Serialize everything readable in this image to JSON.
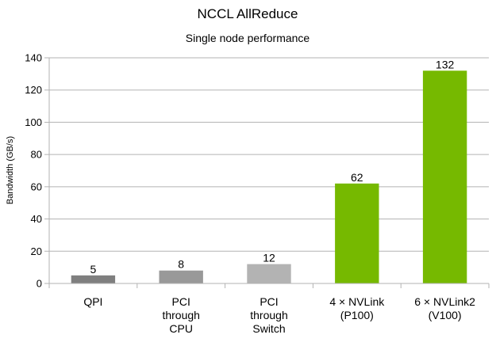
{
  "chart_data": {
    "type": "bar",
    "title": "NCCL AllReduce",
    "subtitle": "Single node performance",
    "xlabel": "",
    "ylabel": "Bandwidth (GB/s)",
    "ylim": [
      0,
      140
    ],
    "yticks": [
      0,
      20,
      40,
      60,
      80,
      100,
      120,
      140
    ],
    "grid": true,
    "legend": "none",
    "categories": [
      "QPI",
      "PCI\nthrough\nCPU",
      "PCI\nthrough\nSwitch",
      "4 × NVLink\n(P100)",
      "6 × NVLink2\n(V100)"
    ],
    "values": [
      5,
      8,
      12,
      62,
      132
    ],
    "data_labels": [
      "5",
      "8",
      "12",
      "62",
      "132"
    ],
    "bar_colors": [
      "#7f7f7f",
      "#999999",
      "#b3b3b3",
      "#76b900",
      "#76b900"
    ]
  }
}
